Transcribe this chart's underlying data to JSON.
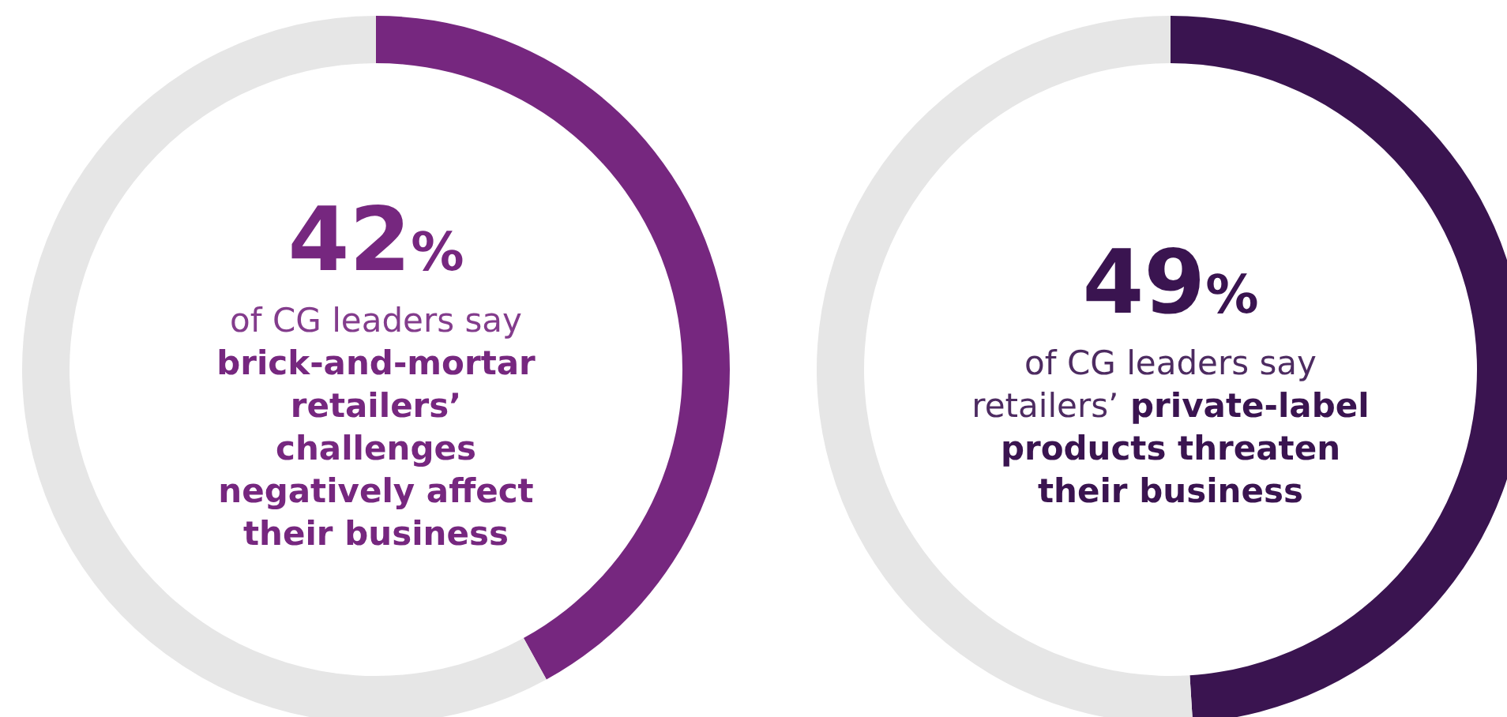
{
  "chart_data": [
    {
      "type": "donut",
      "categories": [
        null,
        null
      ],
      "values": [
        42,
        58
      ],
      "colors": [
        "#76277f",
        "#e6e6e6"
      ],
      "annotations": [
        "42%",
        "of CG leaders say",
        "brick-and-mortar retailers’ challenges negatively affect their business"
      ]
    },
    {
      "type": "donut",
      "categories": [
        null,
        null
      ],
      "values": [
        49,
        51
      ],
      "colors": [
        "#3a1450",
        "#e6e6e6"
      ],
      "annotations": [
        "49%",
        "of CG leaders say retailers’",
        "private-label products threaten their business"
      ]
    }
  ]
}
